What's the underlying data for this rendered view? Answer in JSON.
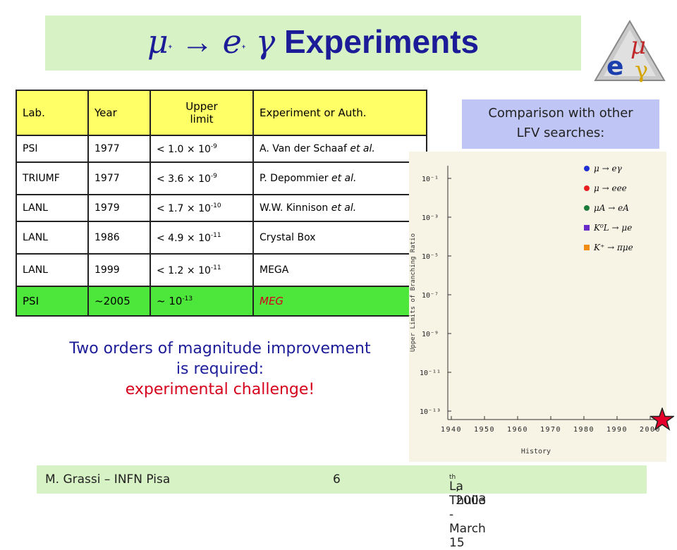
{
  "title": {
    "mu": "μ",
    "plus1": "+",
    "arrow": " → ",
    "e": "e",
    "plus2": "+",
    "gamma": " γ",
    "rest": " Experiments"
  },
  "logo": {
    "mu": "μ",
    "e": "e",
    "gamma": "γ"
  },
  "table": {
    "headers": {
      "lab": "Lab.",
      "year": "Year",
      "limit_line1": "Upper",
      "limit_line2": "limit",
      "author": "Experiment or Auth."
    },
    "rows": [
      {
        "lab": "PSI",
        "year": "1977",
        "limit_base": "< 1.0 × 10",
        "limit_exp": "-9",
        "author": "A. Van der Schaaf",
        "author_suffix": " et al."
      },
      {
        "lab": "TRIUMF",
        "year": "1977",
        "limit_base": "< 3.6 × 10",
        "limit_exp": "-9",
        "author": "P. Depommier",
        "author_suffix": " et al."
      },
      {
        "lab": "LANL",
        "year": "1979",
        "limit_base": "< 1.7 × 10",
        "limit_exp": "-10",
        "author": "W.W. Kinnison",
        "author_suffix": " et al."
      },
      {
        "lab": "LANL",
        "year": "1986",
        "limit_base": "< 4.9 × 10",
        "limit_exp": "-11",
        "author": "Crystal Box",
        "author_suffix": ""
      },
      {
        "lab": "LANL",
        "year": "1999",
        "limit_base": "< 1.2 × 10",
        "limit_exp": "-11",
        "author": "MEGA",
        "author_suffix": ""
      }
    ],
    "meg_row": {
      "lab": "PSI",
      "year": "~2005",
      "limit_base": "~ 10",
      "limit_exp": "-13",
      "author": "MEG"
    }
  },
  "compare": {
    "line1": "Comparison with other",
    "line2": "LFV searches:"
  },
  "message": {
    "line1": "Two orders of magnitude improvement",
    "line2": "is required:",
    "line3": "experimental challenge!"
  },
  "footer": {
    "left": "M. Grassi – INFN Pisa",
    "page": "6",
    "right_prefix": "La Thuile -  March 15",
    "right_sup": "th",
    "right_suffix": " , 2003"
  },
  "plot": {
    "y_ticks": [
      "10⁻¹",
      "10⁻³",
      "10⁻⁵",
      "10⁻⁷",
      "10⁻⁹",
      "10⁻¹¹",
      "10⁻¹³"
    ],
    "x_ticks": [
      "1940",
      "1950",
      "1960",
      "1970",
      "1980",
      "1990",
      "2000"
    ],
    "ylabel": "Upper Limits of Branching Ratio",
    "xlabel": "History",
    "legend": [
      "μ → eγ",
      "μ → eee",
      "μA → eA",
      "K⁰L → μe",
      "K⁺ → πμe"
    ],
    "colors": [
      "#1f2fd0",
      "#e62020",
      "#1c7a3a",
      "#6a2ac8",
      "#f28c10"
    ]
  }
}
